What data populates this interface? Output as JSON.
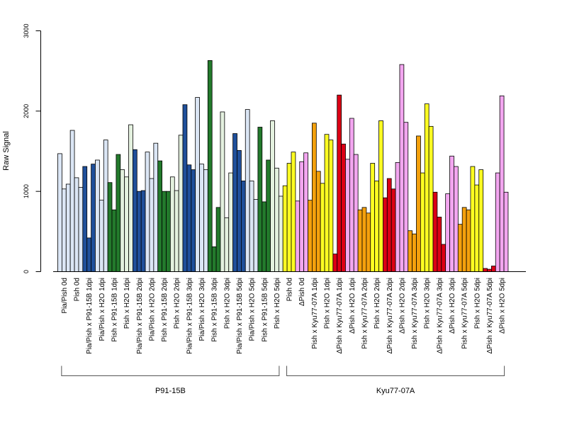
{
  "chart_data": {
    "type": "bar",
    "title": "",
    "xlabel": "",
    "ylabel": "Raw Signal",
    "ylim": [
      0,
      3000
    ],
    "yticks": [
      0,
      1000,
      2000,
      3000
    ],
    "grid": false,
    "colors": {
      "lightblue": "#dbe6f5",
      "blue": "#1f4f9a",
      "lightgreen": "#e4f1df",
      "green": "#237a2c",
      "yellow": "#ffff22",
      "pink": "#f3a6f0",
      "orange": "#f4a10d",
      "red": "#dc0015"
    },
    "categories": [
      {
        "label": "Pia/Pish 0d",
        "color": "lightblue",
        "values": [
          1470,
          1030,
          1090
        ]
      },
      {
        "label": "Pish 0d",
        "color": "lightblue",
        "values": [
          1760,
          1170,
          1050
        ]
      },
      {
        "label": "Pia/Pish x P91-15B 1dpi",
        "color": "blue",
        "values": [
          1310,
          420,
          1340
        ]
      },
      {
        "label": "Pia/Pish x H2O 1dpi",
        "color": "lightblue",
        "values": [
          1390,
          890,
          1640
        ]
      },
      {
        "label": "Pish x P91-15B 1dpi",
        "color": "green",
        "values": [
          1110,
          770,
          1460
        ]
      },
      {
        "label": "Pish x H2O 1dpi",
        "color": "lightgreen",
        "values": [
          1270,
          1180,
          1830
        ]
      },
      {
        "label": "Pia/Pish x P91-15B 2dpi",
        "color": "blue",
        "values": [
          1520,
          1000,
          1010
        ]
      },
      {
        "label": "Pia/Pish x H2O 2dpi",
        "color": "lightblue",
        "values": [
          1490,
          1160,
          1600
        ]
      },
      {
        "label": "Pish x P91-15B 2dpi",
        "color": "green",
        "values": [
          1380,
          1000,
          1000
        ]
      },
      {
        "label": "Pish x H2O 2dpi",
        "color": "lightgreen",
        "values": [
          1180,
          1010,
          1700
        ]
      },
      {
        "label": "Pia/Pish x P91-15B 3dpi",
        "color": "blue",
        "values": [
          2080,
          1330,
          1270
        ]
      },
      {
        "label": "Pia/Pish x H2O 3dpi",
        "color": "lightblue",
        "values": [
          2170,
          1340,
          1270
        ]
      },
      {
        "label": "Pish x P91-15B 3dpi",
        "color": "green",
        "values": [
          2630,
          310,
          800
        ]
      },
      {
        "label": "Pish x H2O 3dpi",
        "color": "lightgreen",
        "values": [
          1990,
          670,
          1230
        ]
      },
      {
        "label": "Pia/Pish x P91-15B 5dpi",
        "color": "blue",
        "values": [
          1720,
          1510,
          1130
        ]
      },
      {
        "label": "Pia/Pish x H2O 5dpi",
        "color": "lightblue",
        "values": [
          2020,
          1130,
          900
        ]
      },
      {
        "label": "Pish x P91-15B 5dpi",
        "color": "green",
        "values": [
          1800,
          870,
          1390
        ]
      },
      {
        "label": "Pish x H2O 5dpi",
        "color": "lightgreen",
        "values": [
          1880,
          1290,
          940
        ]
      },
      {
        "label": "Pish 0d",
        "color": "yellow",
        "values": [
          1070,
          1350,
          1490
        ]
      },
      {
        "label": "ΔPish 0d",
        "color": "pink",
        "values": [
          880,
          1370,
          1480
        ]
      },
      {
        "label": "Pish x Kyu77-07A 1dpi",
        "color": "orange",
        "values": [
          890,
          1850,
          1250
        ]
      },
      {
        "label": "Pish x H2O 1dpi",
        "color": "yellow",
        "values": [
          1100,
          1710,
          1640
        ]
      },
      {
        "label": "ΔPish x Kyu77-07A 1dpi",
        "color": "red",
        "values": [
          220,
          2200,
          1590
        ]
      },
      {
        "label": "ΔPish x H2O 1dpi",
        "color": "pink",
        "values": [
          1400,
          1910,
          1460
        ]
      },
      {
        "label": "Pish x Kyu77-07A 2dpi",
        "color": "orange",
        "values": [
          770,
          800,
          730
        ]
      },
      {
        "label": "Pish x H2O 2dpi",
        "color": "yellow",
        "values": [
          1350,
          1130,
          1880
        ]
      },
      {
        "label": "ΔPish x Kyu77-07A 2dpi",
        "color": "red",
        "values": [
          920,
          1160,
          1030
        ]
      },
      {
        "label": "ΔPish x H2O 2dpi",
        "color": "pink",
        "values": [
          1360,
          2580,
          1860
        ]
      },
      {
        "label": "Pish x Kyu77-07A 3dpi",
        "color": "orange",
        "values": [
          510,
          470,
          1690
        ]
      },
      {
        "label": "Pish x H2O 3dpi",
        "color": "yellow",
        "values": [
          1230,
          2090,
          1810
        ]
      },
      {
        "label": "ΔPish x Kyu77-07A 3dpi",
        "color": "red",
        "values": [
          990,
          680,
          340
        ]
      },
      {
        "label": "ΔPish x H2O 3dpi",
        "color": "pink",
        "values": [
          970,
          1440,
          1310
        ]
      },
      {
        "label": "Pish x Kyu77-07A 5dpi",
        "color": "orange",
        "values": [
          590,
          800,
          770
        ]
      },
      {
        "label": "Pish x H2O 5dpi",
        "color": "yellow",
        "values": [
          1310,
          1080,
          1270
        ]
      },
      {
        "label": "ΔPish x Kyu77-07A 5dpi",
        "color": "red",
        "values": [
          40,
          30,
          70
        ]
      },
      {
        "label": "ΔPish x H2O 5dpi",
        "color": "pink",
        "values": [
          1230,
          2190,
          990
        ]
      }
    ],
    "groups": [
      {
        "label": "P91-15B",
        "first": 0,
        "last": 17
      },
      {
        "label": "Kyu77-07A",
        "first": 18,
        "last": 35
      }
    ]
  }
}
